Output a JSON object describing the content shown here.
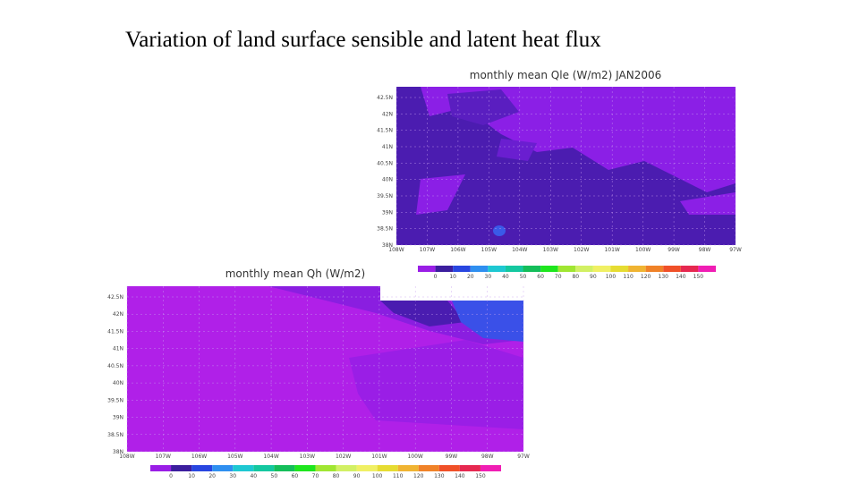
{
  "slide_title": "Variation of land surface sensible and latent heat flux",
  "maps": [
    {
      "title": "monthly mean Qle (W/m2) JAN2006",
      "yticks": [
        "42.5N",
        "42N",
        "41.5N",
        "41N",
        "40.5N",
        "40N",
        "39.5N",
        "39N",
        "38.5N",
        "38N"
      ],
      "xticks": [
        "108W",
        "107W",
        "106W",
        "105W",
        "104W",
        "103W",
        "102W",
        "101W",
        "100W",
        "99W",
        "98W",
        "97W"
      ],
      "colorbar": {
        "labels": [
          0,
          10,
          20,
          30,
          40,
          50,
          60,
          70,
          80,
          90,
          100,
          110,
          120,
          130,
          140,
          150
        ],
        "colors": [
          "#9a1ee6",
          "#3c1e9e",
          "#2846e0",
          "#2f8ff0",
          "#1ec8d2",
          "#14c8a0",
          "#14be5a",
          "#1ee61e",
          "#a0e632",
          "#d2f064",
          "#f0f064",
          "#e6dc32",
          "#f0b432",
          "#f08228",
          "#f05028",
          "#e62850",
          "#f01eb4"
        ]
      }
    },
    {
      "title": "monthly mean Qh (W/m2)",
      "yticks": [
        "42.5N",
        "42N",
        "41.5N",
        "41N",
        "40.5N",
        "40N",
        "39.5N",
        "39N",
        "38.5N",
        "38N"
      ],
      "xticks": [
        "108W",
        "107W",
        "106W",
        "105W",
        "104W",
        "103W",
        "102W",
        "101W",
        "100W",
        "99W",
        "98W",
        "97W"
      ],
      "colorbar": {
        "labels": [
          0,
          10,
          20,
          30,
          40,
          50,
          60,
          70,
          80,
          90,
          100,
          110,
          120,
          130,
          140,
          150
        ],
        "colors": [
          "#9a1ee6",
          "#3c1e9e",
          "#2846e0",
          "#2f8ff0",
          "#1ec8d2",
          "#14c8a0",
          "#14be5a",
          "#1ee61e",
          "#a0e632",
          "#d2f064",
          "#f0f064",
          "#e6dc32",
          "#f0b432",
          "#f08228",
          "#f05028",
          "#e62850",
          "#f01eb4"
        ]
      }
    }
  ]
}
